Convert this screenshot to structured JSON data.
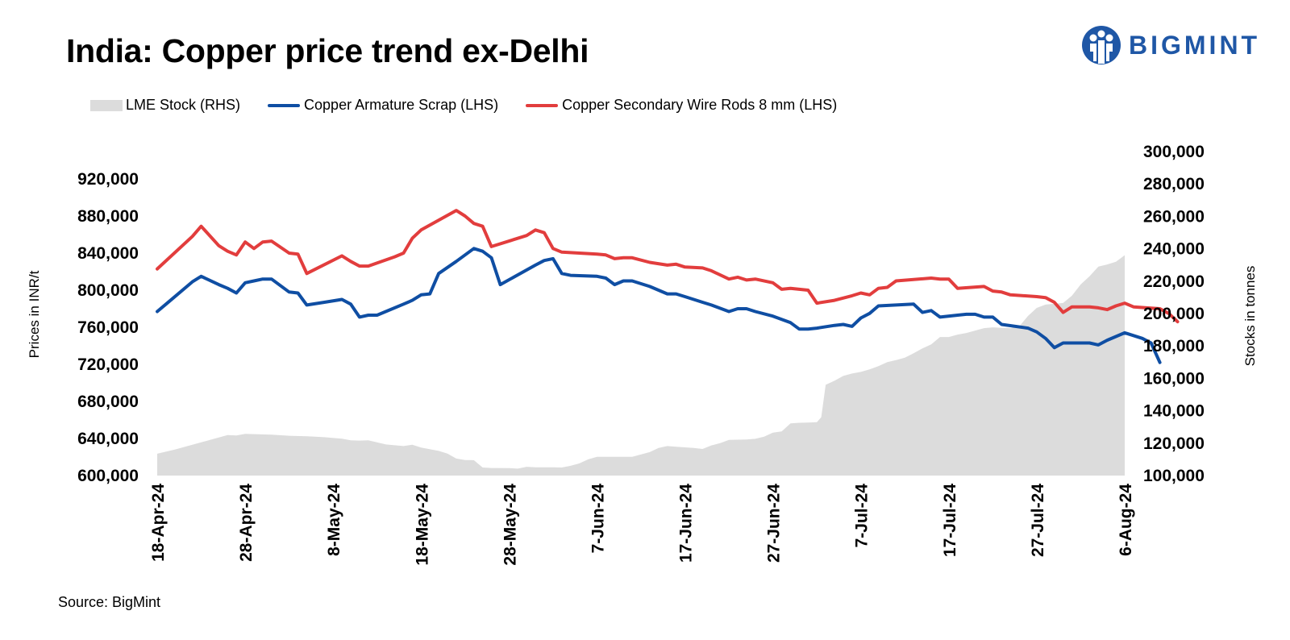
{
  "header": {
    "title": "India: Copper price trend ex-Delhi",
    "logo_text": "BIGMINT"
  },
  "legend": {
    "lme": "LME Stock (RHS)",
    "scrap": "Copper Armature Scrap (LHS)",
    "rods": "Copper Secondary Wire Rods 8 mm (LHS)"
  },
  "footer": {
    "source": "Source: BigMint"
  },
  "colors": {
    "lme": "#dcdcdc",
    "scrap": "#0f4ea3",
    "rods": "#e23d3d",
    "brand": "#1f57a6"
  },
  "chart_data": {
    "type": "line",
    "title": "India: Copper price trend ex-Delhi",
    "x_range_days": [
      0,
      110
    ],
    "x_ticks": [
      {
        "day": 0,
        "label": "18-Apr-24"
      },
      {
        "day": 10,
        "label": "28-Apr-24"
      },
      {
        "day": 20,
        "label": "8-May-24"
      },
      {
        "day": 30,
        "label": "18-May-24"
      },
      {
        "day": 40,
        "label": "28-May-24"
      },
      {
        "day": 50,
        "label": "7-Jun-24"
      },
      {
        "day": 60,
        "label": "17-Jun-24"
      },
      {
        "day": 70,
        "label": "27-Jun-24"
      },
      {
        "day": 80,
        "label": "7-Jul-24"
      },
      {
        "day": 90,
        "label": "17-Jul-24"
      },
      {
        "day": 100,
        "label": "27-Jul-24"
      },
      {
        "day": 110,
        "label": "6-Aug-24"
      }
    ],
    "y_left": {
      "label": "Prices in INR/t",
      "range": [
        600000,
        920000
      ],
      "ticks": [
        "600,000",
        "640,000",
        "680,000",
        "720,000",
        "760,000",
        "800,000",
        "840,000",
        "880,000",
        "920,000"
      ]
    },
    "y_right": {
      "label": "Stocks in tonnes",
      "range": [
        100000,
        300000
      ],
      "ticks": [
        "100,000",
        "120,000",
        "140,000",
        "160,000",
        "180,000",
        "200,000",
        "220,000",
        "240,000",
        "260,000",
        "280,000",
        "300,000"
      ]
    },
    "series": [
      {
        "name": "LME Stock (RHS)",
        "axis": "right",
        "kind": "area",
        "points": [
          [
            0,
            113500
          ],
          [
            2,
            116000
          ],
          [
            4,
            119000
          ],
          [
            6,
            122000
          ],
          [
            8,
            125000
          ],
          [
            9,
            124800
          ],
          [
            10,
            125700
          ],
          [
            13,
            125200
          ],
          [
            15,
            124600
          ],
          [
            17,
            124300
          ],
          [
            19,
            123700
          ],
          [
            21,
            122800
          ],
          [
            22,
            121800
          ],
          [
            23,
            121600
          ],
          [
            24,
            121800
          ],
          [
            26,
            119200
          ],
          [
            28,
            118200
          ],
          [
            29,
            119000
          ],
          [
            30,
            117300
          ],
          [
            32,
            115200
          ],
          [
            33,
            113600
          ],
          [
            34,
            110500
          ],
          [
            35,
            109600
          ],
          [
            36,
            109500
          ],
          [
            37,
            105000
          ],
          [
            38,
            104700
          ],
          [
            40,
            104600
          ],
          [
            41,
            104300
          ],
          [
            42,
            105400
          ],
          [
            43,
            105100
          ],
          [
            45,
            105100
          ],
          [
            46,
            105000
          ],
          [
            47,
            106000
          ],
          [
            48,
            107500
          ],
          [
            49,
            110000
          ],
          [
            50,
            111600
          ],
          [
            52,
            111600
          ],
          [
            53,
            111600
          ],
          [
            54,
            111600
          ],
          [
            56,
            114500
          ],
          [
            57,
            117000
          ],
          [
            58,
            118200
          ],
          [
            59,
            117800
          ],
          [
            61,
            117000
          ],
          [
            62,
            116400
          ],
          [
            63,
            118600
          ],
          [
            64,
            120000
          ],
          [
            65,
            122000
          ],
          [
            67,
            122300
          ],
          [
            68,
            122700
          ],
          [
            69,
            124000
          ],
          [
            70,
            126500
          ],
          [
            71,
            127200
          ],
          [
            72,
            132200
          ],
          [
            73,
            132600
          ],
          [
            74,
            132700
          ],
          [
            75,
            133000
          ],
          [
            75.5,
            136000
          ],
          [
            76,
            156000
          ],
          [
            77,
            158500
          ],
          [
            78,
            161500
          ],
          [
            79,
            163000
          ],
          [
            80,
            164000
          ],
          [
            81,
            165500
          ],
          [
            82,
            167500
          ],
          [
            83,
            170000
          ],
          [
            84,
            171300
          ],
          [
            85,
            172800
          ],
          [
            86,
            175500
          ],
          [
            87,
            178500
          ],
          [
            88,
            181000
          ],
          [
            89,
            185500
          ],
          [
            90,
            185500
          ],
          [
            91,
            187000
          ],
          [
            92,
            188000
          ],
          [
            93,
            189500
          ],
          [
            94,
            191000
          ],
          [
            95,
            191500
          ],
          [
            96,
            191200
          ],
          [
            97,
            191000
          ],
          [
            98,
            192000
          ],
          [
            99,
            198500
          ],
          [
            100,
            203500
          ],
          [
            101,
            205500
          ],
          [
            102,
            206000
          ],
          [
            103,
            206500
          ],
          [
            104,
            211000
          ],
          [
            105,
            218000
          ],
          [
            106,
            223000
          ],
          [
            107,
            229000
          ],
          [
            108,
            230300
          ],
          [
            109,
            232000
          ],
          [
            110,
            236000
          ]
        ]
      },
      {
        "name": "Copper Armature Scrap (LHS)",
        "axis": "left",
        "kind": "line",
        "points": [
          [
            0,
            777000
          ],
          [
            1,
            785000
          ],
          [
            4,
            809000
          ],
          [
            5,
            815000
          ],
          [
            7,
            806000
          ],
          [
            8,
            802000
          ],
          [
            9,
            797000
          ],
          [
            10,
            808000
          ],
          [
            11,
            810000
          ],
          [
            12,
            812000
          ],
          [
            13,
            812000
          ],
          [
            15,
            798000
          ],
          [
            16,
            797000
          ],
          [
            17,
            784000
          ],
          [
            19,
            787000
          ],
          [
            21,
            790000
          ],
          [
            22,
            785000
          ],
          [
            23,
            771000
          ],
          [
            24,
            773000
          ],
          [
            25,
            773000
          ],
          [
            28,
            785000
          ],
          [
            29,
            789000
          ],
          [
            30,
            795000
          ],
          [
            31,
            796000
          ],
          [
            32,
            818000
          ],
          [
            34,
            831000
          ],
          [
            35,
            838000
          ],
          [
            36,
            845000
          ],
          [
            37,
            842000
          ],
          [
            38,
            835000
          ],
          [
            39,
            806000
          ],
          [
            43,
            827000
          ],
          [
            44,
            832000
          ],
          [
            45,
            834000
          ],
          [
            46,
            818000
          ],
          [
            47,
            816000
          ],
          [
            50,
            815000
          ],
          [
            51,
            813000
          ],
          [
            52,
            806000
          ],
          [
            53,
            810000
          ],
          [
            54,
            810000
          ],
          [
            56,
            804000
          ],
          [
            58,
            796000
          ],
          [
            59,
            796000
          ],
          [
            60,
            793000
          ],
          [
            62,
            787000
          ],
          [
            63,
            784000
          ],
          [
            65,
            777000
          ],
          [
            66,
            780000
          ],
          [
            67,
            780000
          ],
          [
            68,
            777000
          ],
          [
            70,
            772000
          ],
          [
            72,
            765000
          ],
          [
            73,
            758000
          ],
          [
            74,
            758000
          ],
          [
            75,
            759000
          ],
          [
            77,
            762000
          ],
          [
            78,
            763000
          ],
          [
            79,
            761000
          ],
          [
            80,
            770000
          ],
          [
            81,
            775000
          ],
          [
            82,
            783000
          ],
          [
            86,
            785000
          ],
          [
            87,
            776000
          ],
          [
            88,
            778000
          ],
          [
            89,
            771000
          ],
          [
            91,
            773000
          ],
          [
            92,
            774000
          ],
          [
            93,
            774000
          ],
          [
            94,
            771000
          ],
          [
            95,
            771000
          ],
          [
            96,
            763000
          ],
          [
            99,
            759000
          ],
          [
            100,
            755000
          ],
          [
            101,
            748000
          ],
          [
            102,
            738000
          ],
          [
            103,
            743000
          ],
          [
            106,
            743000
          ],
          [
            107,
            741000
          ],
          [
            108,
            746000
          ],
          [
            109,
            750000
          ],
          [
            110,
            754000
          ],
          [
            112,
            748000
          ],
          [
            113,
            743000
          ],
          [
            114,
            722000
          ]
        ]
      },
      {
        "name": "Copper Secondary Wire Rods 8 mm (LHS)",
        "axis": "left",
        "kind": "line",
        "points": [
          [
            0,
            823000
          ],
          [
            4,
            858000
          ],
          [
            5,
            869000
          ],
          [
            7,
            848000
          ],
          [
            8,
            842000
          ],
          [
            9,
            838000
          ],
          [
            10,
            852000
          ],
          [
            11,
            845000
          ],
          [
            12,
            852000
          ],
          [
            13,
            853000
          ],
          [
            15,
            840000
          ],
          [
            16,
            839000
          ],
          [
            17,
            818000
          ],
          [
            21,
            837000
          ],
          [
            22,
            831000
          ],
          [
            23,
            826000
          ],
          [
            24,
            826000
          ],
          [
            27,
            836000
          ],
          [
            28,
            840000
          ],
          [
            29,
            856000
          ],
          [
            30,
            865000
          ],
          [
            34,
            886000
          ],
          [
            35,
            880000
          ],
          [
            36,
            872000
          ],
          [
            37,
            869000
          ],
          [
            38,
            847000
          ],
          [
            42,
            859000
          ],
          [
            43,
            865000
          ],
          [
            44,
            862000
          ],
          [
            45,
            845000
          ],
          [
            46,
            841000
          ],
          [
            50,
            839000
          ],
          [
            51,
            838000
          ],
          [
            52,
            834000
          ],
          [
            53,
            835000
          ],
          [
            54,
            835000
          ],
          [
            56,
            830000
          ],
          [
            58,
            827000
          ],
          [
            59,
            828000
          ],
          [
            60,
            825000
          ],
          [
            62,
            824000
          ],
          [
            63,
            821000
          ],
          [
            65,
            812000
          ],
          [
            66,
            814000
          ],
          [
            67,
            811000
          ],
          [
            68,
            812000
          ],
          [
            70,
            808000
          ],
          [
            71,
            801000
          ],
          [
            72,
            802000
          ],
          [
            74,
            800000
          ],
          [
            75,
            786000
          ],
          [
            77,
            789000
          ],
          [
            79,
            794000
          ],
          [
            80,
            797000
          ],
          [
            81,
            795000
          ],
          [
            82,
            802000
          ],
          [
            83,
            803000
          ],
          [
            84,
            810000
          ],
          [
            88,
            813000
          ],
          [
            89,
            812000
          ],
          [
            90,
            812000
          ],
          [
            91,
            802000
          ],
          [
            94,
            804000
          ],
          [
            95,
            799000
          ],
          [
            96,
            798000
          ],
          [
            97,
            795000
          ],
          [
            100,
            793000
          ],
          [
            101,
            792000
          ],
          [
            102,
            787000
          ],
          [
            103,
            776000
          ],
          [
            104,
            782000
          ],
          [
            106,
            782000
          ],
          [
            107,
            781000
          ],
          [
            108,
            779000
          ],
          [
            109,
            783000
          ],
          [
            110,
            786000
          ],
          [
            111,
            782000
          ],
          [
            114,
            780000
          ],
          [
            115,
            775000
          ],
          [
            116,
            766000
          ]
        ]
      }
    ]
  }
}
